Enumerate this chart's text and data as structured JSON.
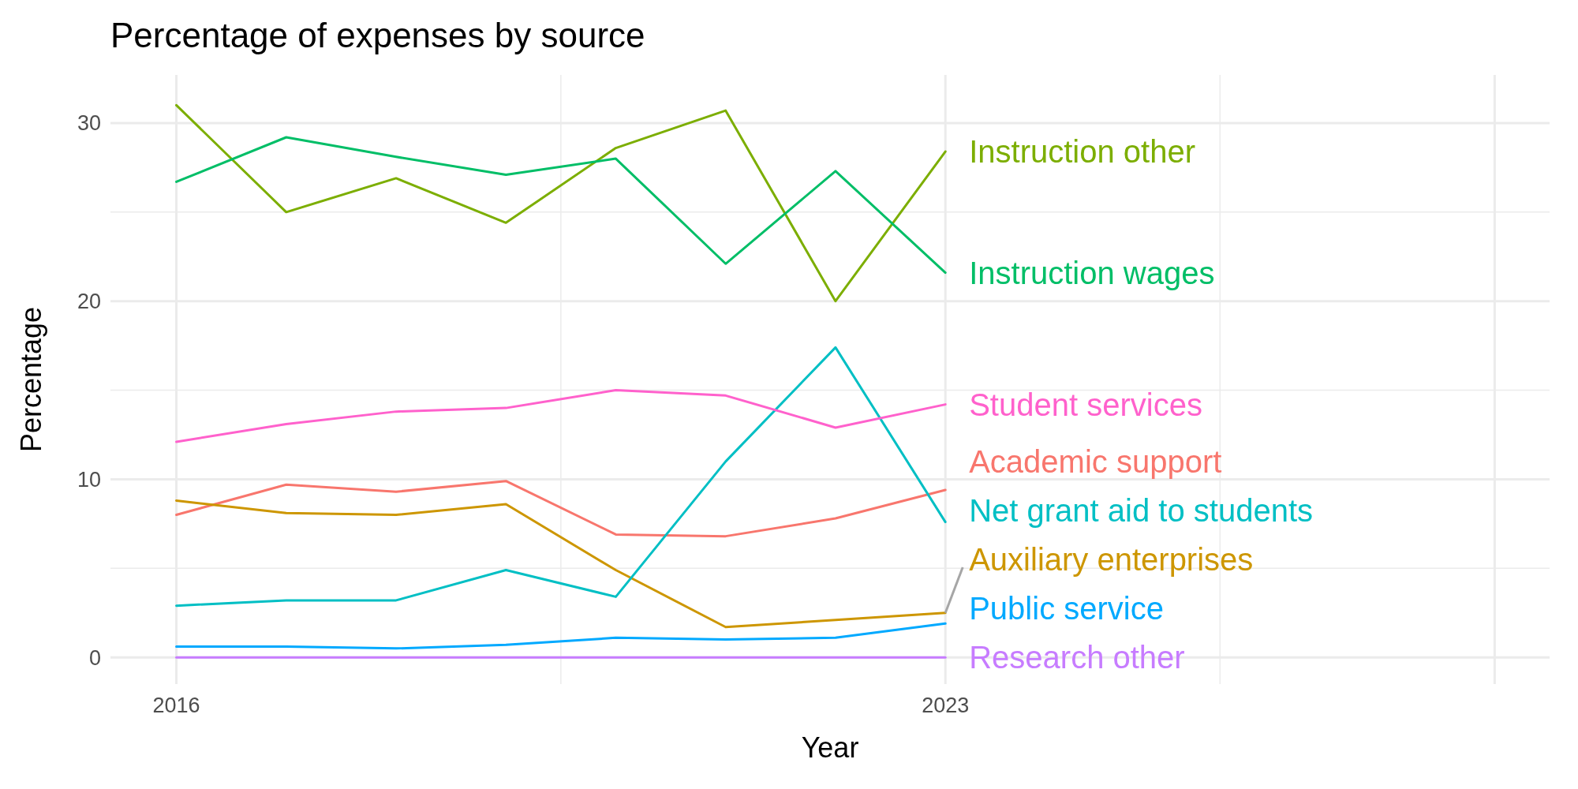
{
  "chart_data": {
    "type": "line",
    "title": "Percentage of expenses by source",
    "xlabel": "Year",
    "ylabel": "Percentage",
    "x": [
      2016,
      2017,
      2018,
      2019,
      2020,
      2021,
      2022,
      2023
    ],
    "xlim": [
      2015.4,
      2028.5
    ],
    "xticks": [
      2016,
      2023,
      {
        "value": 2028,
        "label": null
      }
    ],
    "ylim": [
      -1.5,
      32.7
    ],
    "yticks": [
      0,
      10,
      20,
      30
    ],
    "grid": true,
    "line_style": "solid",
    "marker": "none",
    "series": [
      {
        "name": "Academic support",
        "color": "#f8766d",
        "values": [
          8.0,
          9.7,
          9.3,
          9.9,
          6.9,
          6.8,
          7.8,
          9.4
        ]
      },
      {
        "name": "Auxiliary enterprises",
        "color": "#cd9600",
        "values": [
          8.8,
          8.1,
          8.0,
          8.6,
          4.9,
          1.7,
          2.1,
          2.5
        ]
      },
      {
        "name": "Instruction other",
        "color": "#7cae00",
        "values": [
          31.0,
          25.0,
          26.9,
          24.4,
          28.6,
          30.7,
          20.0,
          28.4
        ]
      },
      {
        "name": "Instruction wages",
        "color": "#00be67",
        "values": [
          26.7,
          29.2,
          28.1,
          27.1,
          28.0,
          22.1,
          27.3,
          21.6
        ]
      },
      {
        "name": "Net grant aid to students",
        "color": "#00bfc4",
        "values": [
          2.9,
          3.2,
          3.2,
          4.9,
          3.4,
          11.0,
          17.4,
          7.6
        ]
      },
      {
        "name": "Public service",
        "color": "#00a9ff",
        "values": [
          0.6,
          0.6,
          0.5,
          0.7,
          1.1,
          1.0,
          1.1,
          1.9
        ]
      },
      {
        "name": "Research other",
        "color": "#c77cff",
        "values": [
          0,
          0,
          0,
          0,
          0,
          0,
          0,
          0
        ]
      },
      {
        "name": "Student services",
        "color": "#ff61cc",
        "values": [
          12.1,
          13.1,
          13.8,
          14.0,
          15.0,
          14.7,
          12.9,
          14.2
        ]
      }
    ]
  }
}
